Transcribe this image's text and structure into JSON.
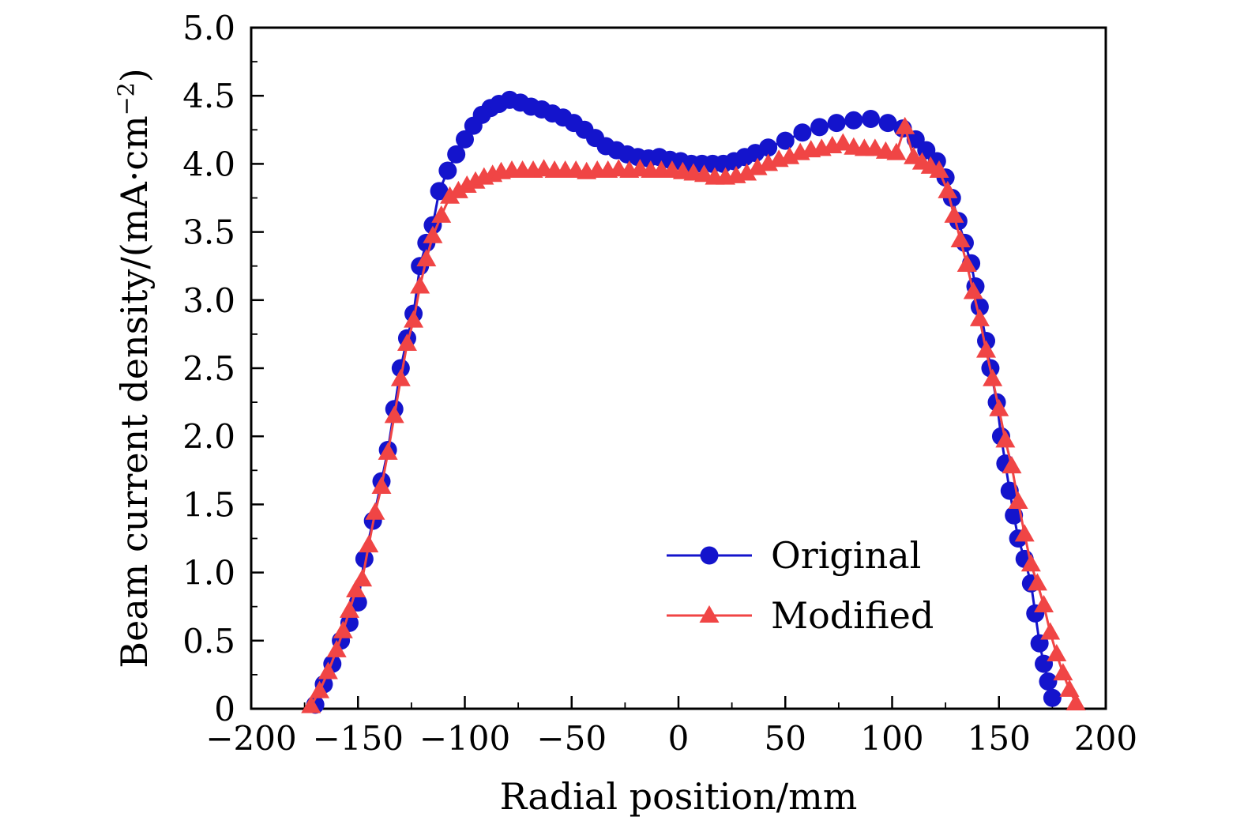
{
  "figure": {
    "background": "#ffffff",
    "axis_color": "#000000"
  },
  "chart_data": {
    "type": "line",
    "title": "",
    "xlabel": "Radial position/mm",
    "ylabel": "Beam current density/(mA·cm⁻²)",
    "ylabel_parts": {
      "pre": "Beam current density/(mA·cm",
      "sup": "−2",
      "post": ")"
    },
    "xlim": [
      -200,
      200
    ],
    "ylim": [
      0,
      5
    ],
    "xticks": [
      -200,
      -150,
      -100,
      -50,
      0,
      50,
      100,
      150,
      200
    ],
    "xtick_labels": [
      "−200",
      "−150",
      "−100",
      "−50",
      "0",
      "50",
      "100",
      "150",
      "200"
    ],
    "yticks": [
      0,
      0.5,
      1.0,
      1.5,
      2.0,
      2.5,
      3.0,
      3.5,
      4.0,
      4.5,
      5.0
    ],
    "ytick_labels": [
      "0",
      "0.5",
      "1.0",
      "1.5",
      "2.0",
      "2.5",
      "3.0",
      "3.5",
      "4.0",
      "4.5",
      "5.0"
    ],
    "x_minor_step": 25,
    "y_minor_step": 0.25,
    "grid": false,
    "legend": {
      "position": "inside-lower-right",
      "entries": [
        {
          "label": "Original",
          "color": "#1414cc",
          "marker": "circle"
        },
        {
          "label": "Modified",
          "color": "#f04545",
          "marker": "triangle"
        }
      ]
    },
    "series": [
      {
        "name": "Original",
        "color": "#1414cc",
        "marker": "circle",
        "points": [
          [
            -170,
            0.03
          ],
          [
            -166,
            0.18
          ],
          [
            -162,
            0.33
          ],
          [
            -158,
            0.5
          ],
          [
            -154,
            0.63
          ],
          [
            -150,
            0.78
          ],
          [
            -147,
            1.1
          ],
          [
            -143,
            1.38
          ],
          [
            -139,
            1.67
          ],
          [
            -136,
            1.9
          ],
          [
            -133,
            2.2
          ],
          [
            -130,
            2.5
          ],
          [
            -127,
            2.72
          ],
          [
            -124,
            2.9
          ],
          [
            -121,
            3.25
          ],
          [
            -118,
            3.42
          ],
          [
            -115,
            3.55
          ],
          [
            -112,
            3.8
          ],
          [
            -108,
            3.95
          ],
          [
            -104,
            4.07
          ],
          [
            -100,
            4.18
          ],
          [
            -96,
            4.28
          ],
          [
            -92,
            4.36
          ],
          [
            -88,
            4.41
          ],
          [
            -84,
            4.44
          ],
          [
            -79,
            4.47
          ],
          [
            -74,
            4.45
          ],
          [
            -69,
            4.42
          ],
          [
            -64,
            4.4
          ],
          [
            -59,
            4.37
          ],
          [
            -54,
            4.34
          ],
          [
            -49,
            4.3
          ],
          [
            -44,
            4.25
          ],
          [
            -39,
            4.19
          ],
          [
            -34,
            4.13
          ],
          [
            -29,
            4.1
          ],
          [
            -24,
            4.07
          ],
          [
            -19,
            4.05
          ],
          [
            -14,
            4.04
          ],
          [
            -9,
            4.05
          ],
          [
            -4,
            4.03
          ],
          [
            1,
            4.02
          ],
          [
            6,
            4.0
          ],
          [
            11,
            4.0
          ],
          [
            16,
            4.0
          ],
          [
            21,
            4.0
          ],
          [
            26,
            4.02
          ],
          [
            31,
            4.05
          ],
          [
            36,
            4.08
          ],
          [
            42,
            4.12
          ],
          [
            50,
            4.17
          ],
          [
            58,
            4.23
          ],
          [
            66,
            4.27
          ],
          [
            74,
            4.3
          ],
          [
            82,
            4.32
          ],
          [
            90,
            4.33
          ],
          [
            98,
            4.3
          ],
          [
            105,
            4.26
          ],
          [
            111,
            4.18
          ],
          [
            116,
            4.1
          ],
          [
            121,
            4.02
          ],
          [
            125,
            3.9
          ],
          [
            128,
            3.75
          ],
          [
            131,
            3.58
          ],
          [
            134,
            3.42
          ],
          [
            137,
            3.27
          ],
          [
            139,
            3.1
          ],
          [
            141,
            2.95
          ],
          [
            144,
            2.7
          ],
          [
            146,
            2.5
          ],
          [
            149,
            2.25
          ],
          [
            151,
            2.0
          ],
          [
            153,
            1.8
          ],
          [
            155,
            1.6
          ],
          [
            157,
            1.42
          ],
          [
            159,
            1.25
          ],
          [
            162,
            1.1
          ],
          [
            165,
            0.92
          ],
          [
            167,
            0.7
          ],
          [
            169,
            0.48
          ],
          [
            171,
            0.33
          ],
          [
            173,
            0.2
          ],
          [
            175,
            0.08
          ]
        ]
      },
      {
        "name": "Modified",
        "color": "#f04545",
        "marker": "triangle",
        "points": [
          [
            -172,
            0.02
          ],
          [
            -168,
            0.13
          ],
          [
            -164,
            0.27
          ],
          [
            -160,
            0.43
          ],
          [
            -157,
            0.57
          ],
          [
            -154,
            0.72
          ],
          [
            -151,
            0.87
          ],
          [
            -148,
            0.95
          ],
          [
            -145,
            1.2
          ],
          [
            -142,
            1.44
          ],
          [
            -139,
            1.63
          ],
          [
            -136,
            1.88
          ],
          [
            -133,
            2.15
          ],
          [
            -130,
            2.42
          ],
          [
            -127,
            2.68
          ],
          [
            -124,
            2.85
          ],
          [
            -121,
            3.1
          ],
          [
            -118,
            3.3
          ],
          [
            -115,
            3.47
          ],
          [
            -111,
            3.62
          ],
          [
            -107,
            3.76
          ],
          [
            -103,
            3.8
          ],
          [
            -99,
            3.84
          ],
          [
            -95,
            3.87
          ],
          [
            -91,
            3.9
          ],
          [
            -87,
            3.92
          ],
          [
            -83,
            3.94
          ],
          [
            -78,
            3.95
          ],
          [
            -73,
            3.95
          ],
          [
            -68,
            3.95
          ],
          [
            -63,
            3.96
          ],
          [
            -58,
            3.95
          ],
          [
            -53,
            3.95
          ],
          [
            -48,
            3.95
          ],
          [
            -43,
            3.94
          ],
          [
            -38,
            3.95
          ],
          [
            -33,
            3.95
          ],
          [
            -28,
            3.96
          ],
          [
            -23,
            3.95
          ],
          [
            -18,
            3.96
          ],
          [
            -13,
            3.95
          ],
          [
            -8,
            3.95
          ],
          [
            -3,
            3.95
          ],
          [
            2,
            3.94
          ],
          [
            7,
            3.93
          ],
          [
            12,
            3.92
          ],
          [
            17,
            3.9
          ],
          [
            22,
            3.9
          ],
          [
            27,
            3.91
          ],
          [
            32,
            3.93
          ],
          [
            37,
            3.97
          ],
          [
            42,
            4.0
          ],
          [
            47,
            4.03
          ],
          [
            52,
            4.05
          ],
          [
            57,
            4.08
          ],
          [
            62,
            4.1
          ],
          [
            67,
            4.11
          ],
          [
            72,
            4.13
          ],
          [
            77,
            4.15
          ],
          [
            82,
            4.12
          ],
          [
            87,
            4.11
          ],
          [
            92,
            4.11
          ],
          [
            97,
            4.09
          ],
          [
            102,
            4.08
          ],
          [
            106,
            4.27
          ],
          [
            110,
            4.05
          ],
          [
            114,
            4.01
          ],
          [
            118,
            3.98
          ],
          [
            122,
            3.95
          ],
          [
            126,
            3.8
          ],
          [
            129,
            3.62
          ],
          [
            132,
            3.44
          ],
          [
            135,
            3.26
          ],
          [
            138,
            3.06
          ],
          [
            141,
            2.86
          ],
          [
            144,
            2.63
          ],
          [
            147,
            2.42
          ],
          [
            150,
            2.2
          ],
          [
            153,
            1.97
          ],
          [
            156,
            1.78
          ],
          [
            159,
            1.52
          ],
          [
            162,
            1.28
          ],
          [
            165,
            1.06
          ],
          [
            168,
            0.92
          ],
          [
            171,
            0.76
          ],
          [
            174,
            0.56
          ],
          [
            177,
            0.4
          ],
          [
            180,
            0.26
          ],
          [
            183,
            0.14
          ],
          [
            186,
            0.04
          ]
        ]
      }
    ]
  }
}
